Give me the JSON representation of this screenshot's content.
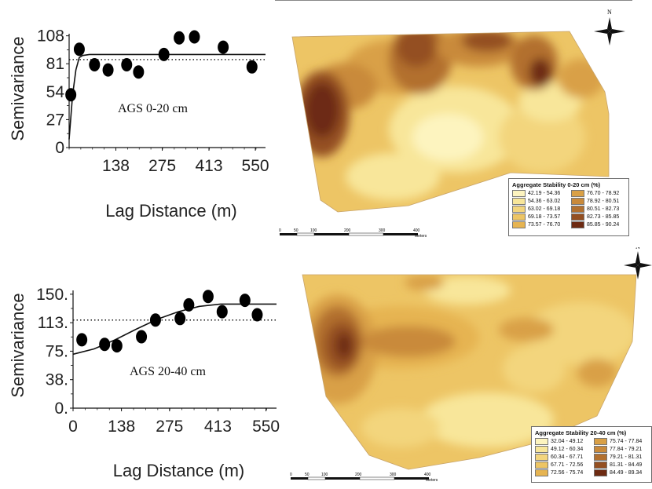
{
  "chart_data": [
    {
      "type": "scatter",
      "title": "AGS 0-20 cm",
      "xlabel": "Lag Distance (m)",
      "ylabel": "Semivariance",
      "x_ticks": [
        "138",
        "275",
        "413",
        "550"
      ],
      "y_ticks": [
        "0",
        "27",
        "54",
        "81",
        "108"
      ],
      "xlim": [
        0,
        580
      ],
      "ylim": [
        0,
        110
      ],
      "points": [
        {
          "x": 5,
          "y": 51
        },
        {
          "x": 30,
          "y": 95
        },
        {
          "x": 75,
          "y": 80
        },
        {
          "x": 115,
          "y": 75
        },
        {
          "x": 170,
          "y": 80
        },
        {
          "x": 205,
          "y": 73
        },
        {
          "x": 280,
          "y": 90
        },
        {
          "x": 325,
          "y": 106
        },
        {
          "x": 370,
          "y": 107
        },
        {
          "x": 455,
          "y": 97
        },
        {
          "x": 540,
          "y": 78
        }
      ],
      "model_curve": [
        [
          0,
          8
        ],
        [
          10,
          50
        ],
        [
          20,
          75
        ],
        [
          30,
          87
        ],
        [
          40,
          89
        ],
        [
          60,
          90
        ],
        [
          580,
          90
        ]
      ],
      "sill_line_y": 85
    },
    {
      "type": "scatter",
      "title": "AGS 20-40 cm",
      "xlabel": "Lag Distance (m)",
      "ylabel": "Semivariance",
      "x_ticks": [
        "0",
        "138",
        "275",
        "413",
        "550"
      ],
      "y_ticks": [
        "0.",
        "38.",
        "75.",
        "113.",
        "150."
      ],
      "xlim": [
        0,
        580
      ],
      "ylim": [
        0,
        155
      ],
      "points": [
        {
          "x": 25,
          "y": 90
        },
        {
          "x": 90,
          "y": 84
        },
        {
          "x": 125,
          "y": 82
        },
        {
          "x": 195,
          "y": 94
        },
        {
          "x": 235,
          "y": 116
        },
        {
          "x": 305,
          "y": 118
        },
        {
          "x": 330,
          "y": 136
        },
        {
          "x": 385,
          "y": 147
        },
        {
          "x": 425,
          "y": 127
        },
        {
          "x": 490,
          "y": 142
        },
        {
          "x": 525,
          "y": 123
        }
      ],
      "model_curve": [
        [
          0,
          71
        ],
        [
          60,
          78
        ],
        [
          120,
          90
        ],
        [
          180,
          104
        ],
        [
          240,
          117
        ],
        [
          300,
          127
        ],
        [
          360,
          134
        ],
        [
          420,
          137
        ],
        [
          580,
          137
        ]
      ],
      "sill_line_y": 116
    }
  ],
  "maps": [
    {
      "legend_title": "Aggregate Stability 0-20 cm (%)",
      "legend": [
        {
          "label": "42.19 - 54.36",
          "color": "#fdf4bf"
        },
        {
          "label": "54.36 - 63.02",
          "color": "#f8e69a"
        },
        {
          "label": "63.02 - 69.18",
          "color": "#f3d57d"
        },
        {
          "label": "69.18 - 73.57",
          "color": "#edc565"
        },
        {
          "label": "73.57 - 76.70",
          "color": "#e6b451"
        },
        {
          "label": "76.70 - 78.92",
          "color": "#d9a046"
        },
        {
          "label": "78.92 - 80.51",
          "color": "#c98a3b"
        },
        {
          "label": "80.51 - 82.73",
          "color": "#b2702f"
        },
        {
          "label": "82.73 - 85.85",
          "color": "#944f21"
        },
        {
          "label": "85.85 - 90.24",
          "color": "#6d2a12"
        }
      ],
      "scale_labels": [
        "0",
        "50",
        "100",
        "200",
        "300",
        "400"
      ],
      "scale_unit": "Meters",
      "north": "N"
    },
    {
      "legend_title": "Aggregate Stability 20-40 cm (%)",
      "legend": [
        {
          "label": "32.04 - 49.12",
          "color": "#fdf4bf"
        },
        {
          "label": "49.12 - 60.34",
          "color": "#f8e69a"
        },
        {
          "label": "60.34 - 67.71",
          "color": "#f3d57d"
        },
        {
          "label": "67.71 - 72.56",
          "color": "#edc565"
        },
        {
          "label": "72.56 - 75.74",
          "color": "#e6b451"
        },
        {
          "label": "75.74 - 77.84",
          "color": "#d9a046"
        },
        {
          "label": "77.84 - 79.21",
          "color": "#c98a3b"
        },
        {
          "label": "79.21 - 81.31",
          "color": "#b2702f"
        },
        {
          "label": "81.31 - 84.49",
          "color": "#944f21"
        },
        {
          "label": "84.49 - 89.34",
          "color": "#6d2a12"
        }
      ],
      "scale_labels": [
        "0",
        "50",
        "100",
        "200",
        "300",
        "400"
      ],
      "scale_unit": "Meters",
      "north": "N"
    }
  ]
}
